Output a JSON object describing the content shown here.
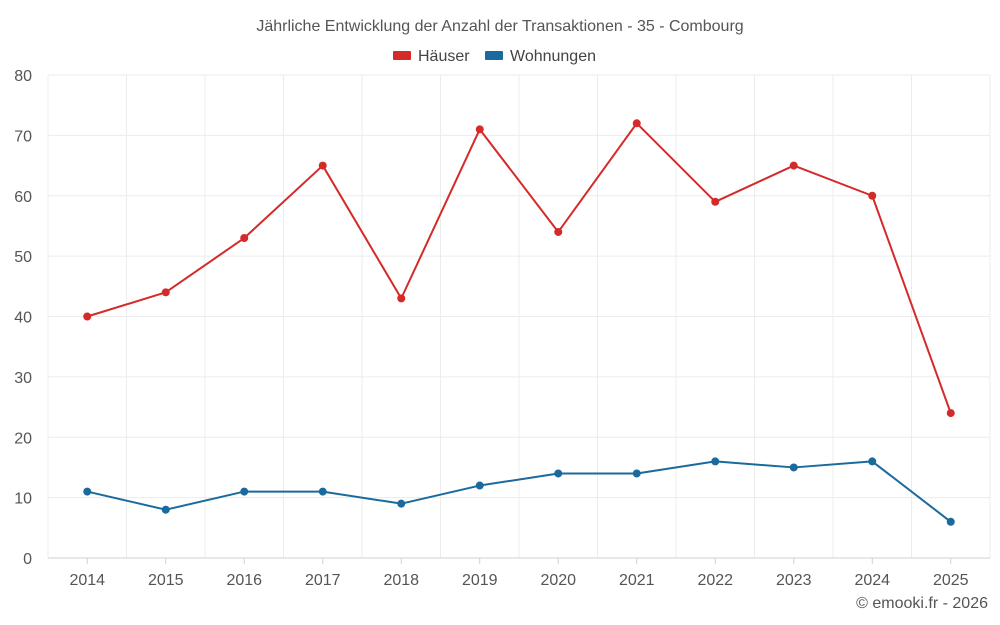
{
  "chart_data": {
    "type": "line",
    "title": "Jährliche Entwicklung der Anzahl der Transaktionen - 35 - Combourg",
    "categories": [
      "2014",
      "2015",
      "2016",
      "2017",
      "2018",
      "2019",
      "2020",
      "2021",
      "2022",
      "2023",
      "2024",
      "2025"
    ],
    "series": [
      {
        "name": "Häuser",
        "color": "#d42a2a",
        "values": [
          40,
          44,
          53,
          65,
          43,
          71,
          54,
          72,
          59,
          65,
          60,
          24
        ]
      },
      {
        "name": "Wohnungen",
        "color": "#1a6a9e",
        "values": [
          11,
          8,
          11,
          11,
          9,
          12,
          14,
          14,
          16,
          15,
          16,
          6
        ]
      }
    ],
    "ylim": [
      0,
      80
    ],
    "yticks": [
      "0",
      "10",
      "20",
      "30",
      "40",
      "50",
      "60",
      "70",
      "80"
    ],
    "grid": true,
    "legend": "top-center",
    "xlabel": "",
    "ylabel": ""
  },
  "credit": "© emooki.fr - 2026"
}
